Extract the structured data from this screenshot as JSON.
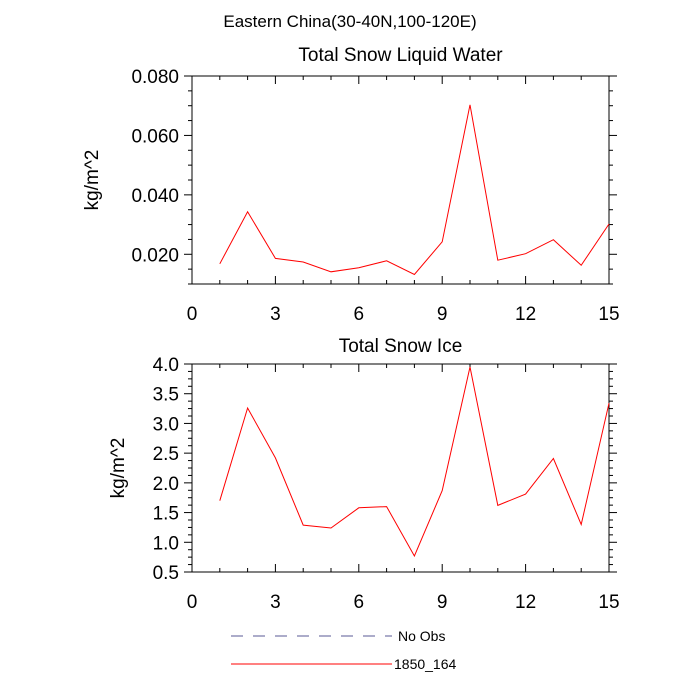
{
  "page": {
    "suptitle": "Eastern China(30-40N,100-120E)"
  },
  "chart_data": [
    {
      "type": "line",
      "title": "Total Snow Liquid Water",
      "ylabel": "kg/m^2",
      "xlabel": "",
      "xlim": [
        0,
        15
      ],
      "ylim": [
        0.01,
        0.08
      ],
      "xticks": [
        0,
        3,
        6,
        9,
        12,
        15
      ],
      "xtick_labels": [
        "0",
        "3",
        "6",
        "9",
        "12",
        "15"
      ],
      "yticks": [
        0.02,
        0.04,
        0.06,
        0.08
      ],
      "ytick_labels": [
        "0.020",
        "0.040",
        "0.060",
        "0.080"
      ],
      "x": [
        1,
        2,
        3,
        4,
        5,
        6,
        7,
        8,
        9,
        10,
        11,
        12,
        13,
        14,
        15
      ],
      "series": [
        {
          "name": "1850_164",
          "color": "#ff0000",
          "values": [
            0.0168,
            0.0343,
            0.0186,
            0.0174,
            0.0141,
            0.0155,
            0.0178,
            0.0132,
            0.0242,
            0.0703,
            0.018,
            0.0202,
            0.0249,
            0.0163,
            0.0302
          ]
        }
      ]
    },
    {
      "type": "line",
      "title": "Total Snow Ice",
      "ylabel": "kg/m^2",
      "xlabel": "",
      "xlim": [
        0,
        15
      ],
      "ylim": [
        0.5,
        4.0
      ],
      "xticks": [
        0,
        3,
        6,
        9,
        12,
        15
      ],
      "xtick_labels": [
        "0",
        "3",
        "6",
        "9",
        "12",
        "15"
      ],
      "yticks": [
        0.5,
        1.0,
        1.5,
        2.0,
        2.5,
        3.0,
        3.5,
        4.0
      ],
      "ytick_labels": [
        "0.5",
        "1.0",
        "1.5",
        "2.0",
        "2.5",
        "3.0",
        "3.5",
        "4.0"
      ],
      "x": [
        1,
        2,
        3,
        4,
        5,
        6,
        7,
        8,
        9,
        10,
        11,
        12,
        13,
        14,
        15
      ],
      "series": [
        {
          "name": "1850_164",
          "color": "#ff0000",
          "values": [
            1.7,
            3.26,
            2.42,
            1.29,
            1.24,
            1.58,
            1.6,
            0.77,
            1.87,
            3.95,
            1.62,
            1.81,
            2.41,
            1.3,
            3.34
          ]
        }
      ]
    }
  ],
  "legend": {
    "placement": "bottom-center",
    "items": [
      {
        "label": "No Obs",
        "color": "#5a5a96",
        "style": "dashed"
      },
      {
        "label": "1850_164",
        "color": "#ff0000",
        "style": "solid"
      }
    ]
  }
}
